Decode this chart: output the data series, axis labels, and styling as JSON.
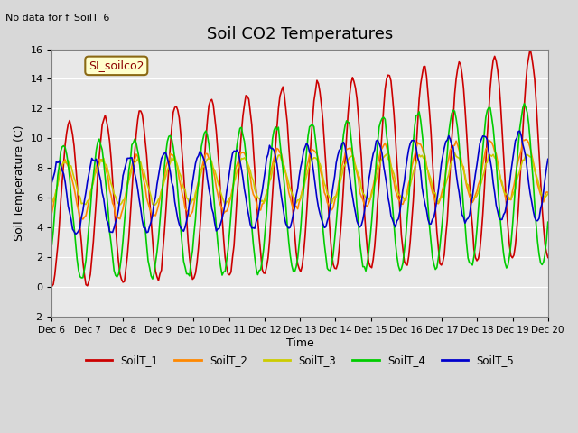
{
  "title": "Soil CO2 Temperatures",
  "xlabel": "Time",
  "ylabel": "Soil Temperature (C)",
  "note": "No data for f_SoilT_6",
  "legend_label": "SI_soilco2",
  "ylim": [
    -2,
    16
  ],
  "yticks": [
    -2,
    0,
    2,
    4,
    6,
    8,
    10,
    12,
    14,
    16
  ],
  "xtick_labels": [
    "Dec 6",
    "Dec 7",
    "Dec 8",
    "Dec 9",
    "Dec 10",
    "Dec 11",
    "Dec 12",
    "Dec 13",
    "Dec 14",
    "Dec 15",
    "Dec 16",
    "Dec 17",
    "Dec 18",
    "Dec 19",
    "Dec 20"
  ],
  "series_colors": {
    "SoilT_1": "#cc0000",
    "SoilT_2": "#ff8800",
    "SoilT_3": "#cccc00",
    "SoilT_4": "#00cc00",
    "SoilT_5": "#0000cc"
  },
  "bg_color": "#e8e8e8",
  "axes_bg": "#f0f0f0",
  "grid_color": "#ffffff"
}
